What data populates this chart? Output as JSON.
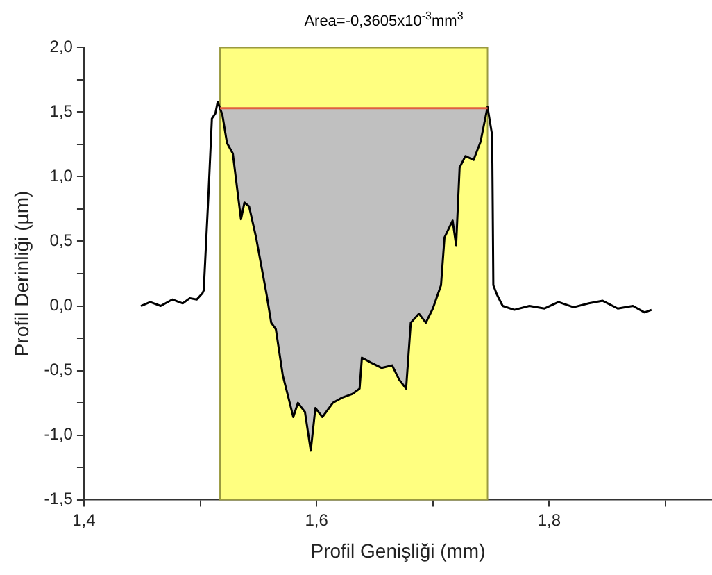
{
  "chart_data": {
    "type": "line",
    "title": "Area=-0,3605x10$^{-3}$mm$^{3}$",
    "xlabel": "Profil Genişliği (mm)",
    "ylabel": "Profil Derinliği (µm)",
    "xlim": [
      1.4,
      1.94
    ],
    "xticks": [
      {
        "value": 1.4,
        "label": "1,4"
      },
      {
        "value": 1.5,
        "label": null
      },
      {
        "value": 1.6,
        "label": "1,6"
      },
      {
        "value": 1.7,
        "label": null
      },
      {
        "value": 1.8,
        "label": "1,8"
      },
      {
        "value": 1.9,
        "label": null
      }
    ],
    "ylim": [
      -1.5,
      2.0
    ],
    "yticks": [
      {
        "value": -1.5,
        "label": "-1,5"
      },
      {
        "value": -1.25,
        "label": null
      },
      {
        "value": -1.0,
        "label": "-1,0"
      },
      {
        "value": -0.75,
        "label": null
      },
      {
        "value": -0.5,
        "label": "-0,5"
      },
      {
        "value": -0.25,
        "label": null
      },
      {
        "value": 0,
        "label": "0,0"
      },
      {
        "value": 0.25,
        "label": null
      },
      {
        "value": 0.5,
        "label": "0,5"
      },
      {
        "value": 0.75,
        "label": null
      },
      {
        "value": 1.0,
        "label": "1,0"
      },
      {
        "value": 1.25,
        "label": null
      },
      {
        "value": 1.5,
        "label": "1,5"
      },
      {
        "value": 1.75,
        "label": null
      },
      {
        "value": 2.0,
        "label": "2,0"
      }
    ],
    "bands": [
      {
        "axis": "x",
        "from": 1.517,
        "to": 1.747,
        "color": "#ffff80"
      }
    ],
    "grid": false,
    "legend": false,
    "marker": "none",
    "line_style": "solid",
    "series": [
      {
        "type": "line",
        "color": "#e06040",
        "x": [
          1.517,
          1.56,
          1.6,
          1.64,
          1.68,
          1.72,
          1.747
        ],
        "values": [
          1.53,
          1.53,
          1.53,
          1.53,
          1.53,
          1.53,
          1.53
        ]
      },
      {
        "type": "area",
        "color": "#c0c0c0",
        "x": [
          1.517,
          1.519,
          1.523,
          1.528,
          1.535,
          1.538,
          1.542,
          1.548,
          1.557,
          1.561,
          1.565,
          1.571,
          1.575,
          1.58,
          1.584,
          1.59,
          1.595,
          1.599,
          1.605,
          1.614,
          1.622,
          1.631,
          1.637,
          1.639,
          1.647,
          1.656,
          1.665,
          1.671,
          1.677,
          1.681,
          1.688,
          1.694,
          1.7,
          1.707,
          1.71,
          1.717,
          1.72,
          1.723,
          1.728,
          1.735,
          1.741,
          1.747
        ],
        "values": [
          1.53,
          1.48,
          1.26,
          1.18,
          0.67,
          0.8,
          0.77,
          0.53,
          0.09,
          -0.13,
          -0.18,
          -0.54,
          -0.68,
          -0.86,
          -0.75,
          -0.82,
          -1.12,
          -0.79,
          -0.86,
          -0.75,
          -0.71,
          -0.68,
          -0.64,
          -0.4,
          -0.44,
          -0.48,
          -0.46,
          -0.57,
          -0.64,
          -0.13,
          -0.06,
          -0.13,
          -0.02,
          0.16,
          0.53,
          0.66,
          0.47,
          1.07,
          1.16,
          1.13,
          1.27,
          1.53
        ]
      },
      {
        "type": "line",
        "color": "#000000",
        "x": [
          1.449,
          1.457,
          1.466,
          1.476,
          1.485,
          1.491,
          1.497,
          1.502,
          1.503,
          1.507,
          1.51,
          1.513,
          1.515,
          1.519,
          1.523,
          1.528,
          1.535,
          1.538,
          1.542,
          1.548,
          1.557,
          1.561,
          1.565,
          1.571,
          1.575,
          1.58,
          1.584,
          1.59,
          1.595,
          1.599,
          1.605,
          1.614,
          1.622,
          1.631,
          1.637,
          1.639,
          1.647,
          1.656,
          1.665,
          1.671,
          1.677,
          1.681,
          1.688,
          1.694,
          1.7,
          1.707,
          1.71,
          1.717,
          1.72,
          1.723,
          1.728,
          1.735,
          1.741,
          1.747,
          1.751,
          1.752,
          1.755,
          1.76,
          1.77,
          1.783,
          1.796,
          1.808,
          1.821,
          1.834,
          1.846,
          1.859,
          1.872,
          1.882,
          1.888
        ],
        "values": [
          0.0,
          0.03,
          0.0,
          0.05,
          0.02,
          0.06,
          0.05,
          0.1,
          0.12,
          0.85,
          1.45,
          1.49,
          1.58,
          1.48,
          1.26,
          1.18,
          0.67,
          0.8,
          0.77,
          0.53,
          0.09,
          -0.13,
          -0.18,
          -0.54,
          -0.68,
          -0.86,
          -0.75,
          -0.82,
          -1.12,
          -0.79,
          -0.86,
          -0.75,
          -0.71,
          -0.68,
          -0.64,
          -0.4,
          -0.44,
          -0.48,
          -0.46,
          -0.57,
          -0.64,
          -0.13,
          -0.06,
          -0.13,
          -0.02,
          0.16,
          0.53,
          0.66,
          0.47,
          1.07,
          1.16,
          1.13,
          1.27,
          1.54,
          1.32,
          0.16,
          0.09,
          0.0,
          -0.03,
          0.0,
          -0.02,
          0.03,
          -0.01,
          0.02,
          0.04,
          -0.02,
          0.0,
          -0.05,
          -0.03
        ]
      }
    ]
  }
}
